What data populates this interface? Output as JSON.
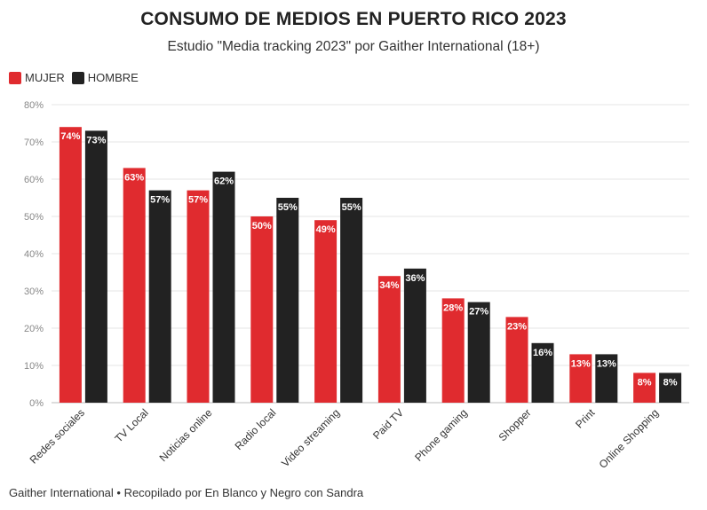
{
  "chart_data": {
    "type": "bar",
    "title": "CONSUMO DE MEDIOS EN PUERTO RICO 2023",
    "subtitle": "Estudio \"Media tracking 2023\" por Gaither International (18+)",
    "categories": [
      "Redes sociales",
      "TV Local",
      "Noticias online",
      "Radio local",
      "Video streaming",
      "Paid TV",
      "Phone gaming",
      "Shopper",
      "Print",
      "Online Shopping"
    ],
    "series": [
      {
        "name": "MUJER",
        "color": "#e02b2f",
        "values": [
          74,
          63,
          57,
          50,
          49,
          34,
          28,
          23,
          13,
          8
        ]
      },
      {
        "name": "HOMBRE",
        "color": "#222222",
        "values": [
          73,
          57,
          62,
          55,
          55,
          36,
          27,
          16,
          13,
          8
        ]
      }
    ],
    "ylim": [
      0,
      80
    ],
    "yticks": [
      0,
      10,
      20,
      30,
      40,
      50,
      60,
      70,
      80
    ],
    "ytick_suffix": "%",
    "label_suffix": "%",
    "grid": true,
    "legend": "top-left",
    "source": "Gaither International • Recopilado por En Blanco y Negro con Sandra"
  }
}
